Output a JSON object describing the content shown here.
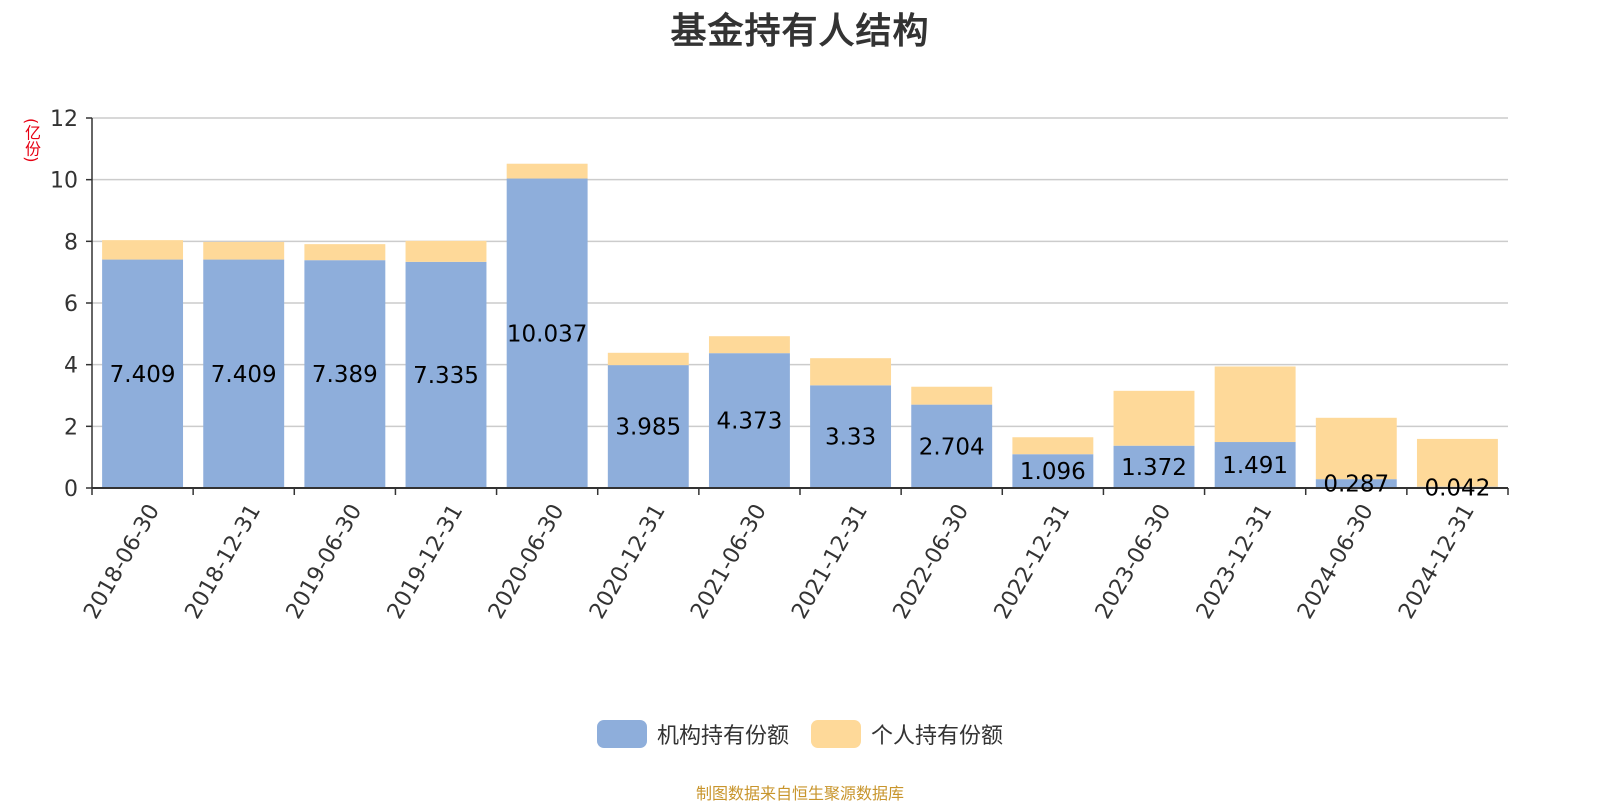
{
  "chart_data": {
    "type": "bar",
    "stacked": true,
    "title": "基金持有人结构",
    "unit": "(亿份)",
    "categories": [
      "2018-06-30",
      "2018-12-31",
      "2019-06-30",
      "2019-12-31",
      "2020-06-30",
      "2020-12-31",
      "2021-06-30",
      "2021-12-31",
      "2022-06-30",
      "2022-12-31",
      "2023-06-30",
      "2023-12-31",
      "2024-06-30",
      "2024-12-31"
    ],
    "ylim": [
      0,
      12
    ],
    "yticks": [
      0,
      2,
      4,
      6,
      8,
      10,
      12
    ],
    "grid": true,
    "legend_position": "bottom-center",
    "series": [
      {
        "name": "机构持有份额",
        "color": "#8eaedb",
        "values": [
          7.409,
          7.409,
          7.389,
          7.335,
          10.037,
          3.985,
          4.373,
          3.33,
          2.704,
          1.096,
          1.372,
          1.491,
          0.287,
          0.042
        ],
        "labels": [
          "7.409",
          "7.409",
          "7.389",
          "7.335",
          "10.037",
          "3.985",
          "4.373",
          "3.33",
          "2.704",
          "1.096",
          "1.372",
          "1.491",
          "0.287",
          "0.042"
        ]
      },
      {
        "name": "个人持有份额",
        "color": "#fed999",
        "values": [
          0.63,
          0.57,
          0.52,
          0.68,
          0.48,
          0.4,
          0.55,
          0.88,
          0.58,
          0.55,
          1.78,
          2.45,
          1.99,
          1.55
        ]
      }
    ]
  },
  "source": "制图数据来自恒生聚源数据库"
}
